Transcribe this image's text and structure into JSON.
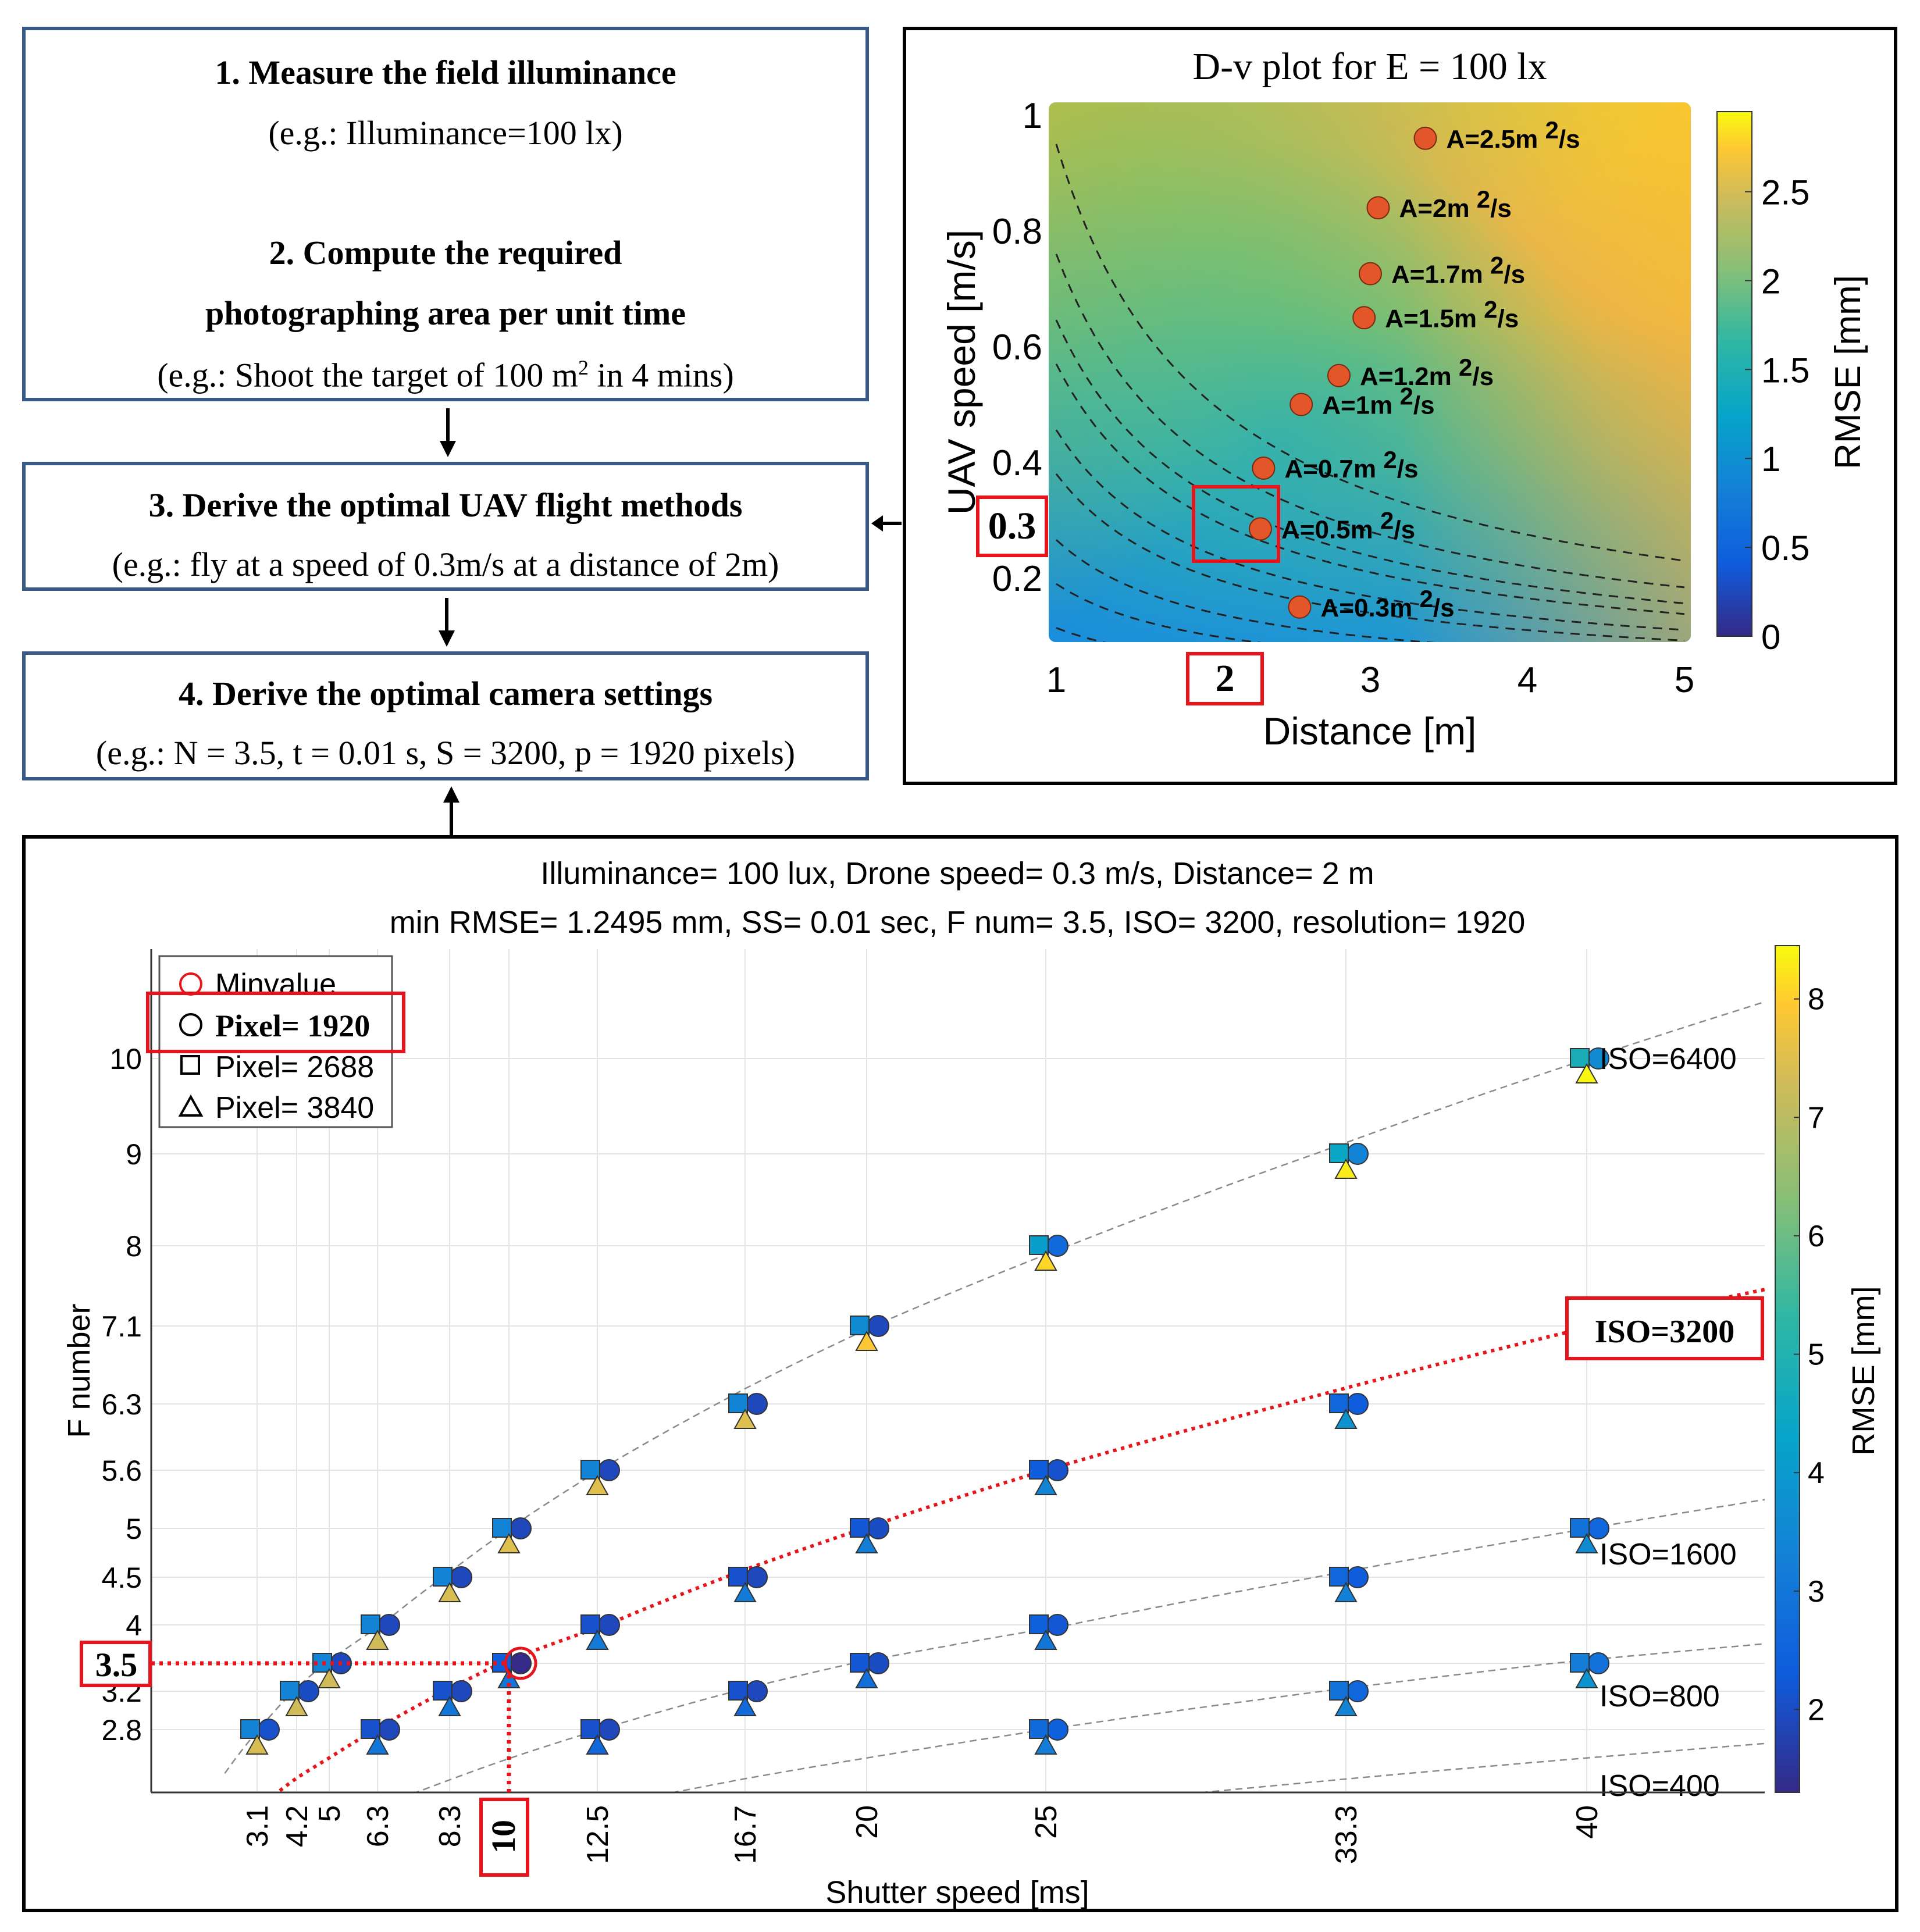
{
  "flow": {
    "step1_title": "1.  Measure the field illuminance",
    "step1_example": "(e.g.: Illuminance=100 lx)",
    "step2_title_line1": "2. Compute the required",
    "step2_title_line2": "photographing area per unit time",
    "step2_example_pre": "(e.g.: Shoot the target of 100 m",
    "step2_example_sup": "2",
    "step2_example_post": " in 4 mins)",
    "step3_title": "3. Derive the optimal UAV flight methods",
    "step3_example": "(e.g.: fly at a speed of 0.3m/s at a distance of 2m)",
    "step4_title": "4. Derive the optimal camera settings",
    "step4_example": "(e.g.: N = 3.5, t = 0.01 s, S = 3200, p = 1920 pixels)"
  },
  "chart_data": [
    {
      "type": "heatmap",
      "title": "D-v plot for E = 100 lx",
      "xlabel": "Distance [m]",
      "ylabel": "UAV speed [m/s]",
      "xlim": [
        1,
        5
      ],
      "ylim": [
        0.1,
        1
      ],
      "xticks": [
        1,
        2,
        3,
        4,
        5
      ],
      "yticks": [
        0.2,
        0.4,
        0.6,
        0.8,
        1
      ],
      "colorbar_label": "RMSE [mm]",
      "colorbar_range": [
        0,
        2.95
      ],
      "colorbar_ticks": [
        0,
        0.5,
        1,
        1.5,
        2,
        2.5
      ],
      "highlight": {
        "x": "2",
        "y": "0.3"
      },
      "points": [
        {
          "label": "A=2.5m",
          "x": 3.35,
          "y": 0.96
        },
        {
          "label": "A=2m",
          "x": 3.05,
          "y": 0.84
        },
        {
          "label": "A=1.7m",
          "x": 3.0,
          "y": 0.726
        },
        {
          "label": "A=1.5m",
          "x": 2.96,
          "y": 0.65
        },
        {
          "label": "A=1.2m",
          "x": 2.8,
          "y": 0.55
        },
        {
          "label": "A=1m",
          "x": 2.56,
          "y": 0.5
        },
        {
          "label": "A=0.7m",
          "x": 2.32,
          "y": 0.39
        },
        {
          "label": "A=0.5m",
          "x": 2.3,
          "y": 0.285
        },
        {
          "label": "A=0.3m",
          "x": 2.55,
          "y": 0.15
        }
      ],
      "label_suffix_sup": "2",
      "label_suffix": "/s",
      "contour_A": [
        0.3,
        0.5,
        0.7,
        1,
        1.2,
        1.5,
        1.7,
        2,
        2.5
      ]
    },
    {
      "type": "scatter",
      "title": "Illuminance= 100 lux, Drone speed= 0.3 m/s, Distance= 2 m",
      "subtitle": "min RMSE= 1.2495 mm, SS= 0.01 sec, F num= 3.5, ISO= 3200, resolution= 1920",
      "xlabel": "Shutter speed [ms]",
      "ylabel": "F number",
      "xticks": [
        "3.1",
        "4.2",
        "5",
        "6.3",
        "8.3",
        "10",
        "12.5",
        "16.7",
        "20",
        "25",
        "33.3",
        "40"
      ],
      "yticks": [
        "2.8",
        "3.2",
        "3.5",
        "4",
        "4.5",
        "5",
        "5.6",
        "6.3",
        "7.1",
        "8",
        "9",
        "10"
      ],
      "colorbar_label": "RMSE [mm]",
      "colorbar_range": [
        1.3,
        8.45
      ],
      "colorbar_ticks": [
        2,
        3,
        4,
        5,
        6,
        7,
        8
      ],
      "legend": [
        "Minvalue",
        "Pixel= 1920",
        "Pixel= 2688",
        "Pixel= 3840"
      ],
      "iso_curves": [
        {
          "name": "ISO=6400",
          "highlight": false
        },
        {
          "name": "ISO=3200",
          "highlight": true
        },
        {
          "name": "ISO=1600",
          "highlight": false
        },
        {
          "name": "ISO=800",
          "highlight": false
        },
        {
          "name": "ISO=400",
          "highlight": false
        }
      ],
      "min_point": {
        "x": "10",
        "y": "3.5"
      },
      "series": [
        {
          "name": "Pixel= 1920",
          "marker": "circle",
          "points": [
            {
              "x": "3.1",
              "y": "2.8",
              "v": 2.1
            },
            {
              "x": "4.2",
              "y": "3.2",
              "v": 2.0
            },
            {
              "x": "5",
              "y": "3.5",
              "v": 1.9
            },
            {
              "x": "6.3",
              "y": "4",
              "v": 1.9
            },
            {
              "x": "8.3",
              "y": "4.5",
              "v": 1.9
            },
            {
              "x": "10",
              "y": "5",
              "v": 1.9
            },
            {
              "x": "12.5",
              "y": "5.6",
              "v": 1.9
            },
            {
              "x": "16.7",
              "y": "6.3",
              "v": 1.9
            },
            {
              "x": "20",
              "y": "7.1",
              "v": 1.9
            },
            {
              "x": "25",
              "y": "8",
              "v": 2.7
            },
            {
              "x": "33.3",
              "y": "9",
              "v": 3.4
            },
            {
              "x": "40",
              "y": "10",
              "v": 3.6
            },
            {
              "x": "6.3",
              "y": "2.8",
              "v": 1.9
            },
            {
              "x": "8.3",
              "y": "3.2",
              "v": 1.9
            },
            {
              "x": "10",
              "y": "3.5",
              "v": 1.25
            },
            {
              "x": "12.5",
              "y": "4",
              "v": 1.9
            },
            {
              "x": "16.7",
              "y": "4.5",
              "v": 1.9
            },
            {
              "x": "20",
              "y": "5",
              "v": 2.0
            },
            {
              "x": "25",
              "y": "5.6",
              "v": 2.1
            },
            {
              "x": "33.3",
              "y": "6.3",
              "v": 2.3
            },
            {
              "x": "40",
              "y": "7.1",
              "v": 2.5
            },
            {
              "x": "12.5",
              "y": "2.8",
              "v": 1.9
            },
            {
              "x": "16.7",
              "y": "3.2",
              "v": 1.9
            },
            {
              "x": "20",
              "y": "3.5",
              "v": 2.0
            },
            {
              "x": "25",
              "y": "4",
              "v": 2.2
            },
            {
              "x": "33.3",
              "y": "4.5",
              "v": 2.3
            },
            {
              "x": "40",
              "y": "5",
              "v": 2.6
            },
            {
              "x": "25",
              "y": "2.8",
              "v": 2.4
            },
            {
              "x": "33.3",
              "y": "3.2",
              "v": 2.6
            },
            {
              "x": "40",
              "y": "3.5",
              "v": 2.9
            }
          ]
        },
        {
          "name": "Pixel= 2688",
          "marker": "square",
          "points": [
            {
              "x": "3.1",
              "y": "2.8",
              "v": 3.4
            },
            {
              "x": "4.2",
              "y": "3.2",
              "v": 3.4
            },
            {
              "x": "5",
              "y": "3.5",
              "v": 3.4
            },
            {
              "x": "6.3",
              "y": "4",
              "v": 3.4
            },
            {
              "x": "8.3",
              "y": "4.5",
              "v": 3.4
            },
            {
              "x": "10",
              "y": "5",
              "v": 3.4
            },
            {
              "x": "12.5",
              "y": "5.6",
              "v": 3.4
            },
            {
              "x": "16.7",
              "y": "6.3",
              "v": 3.4
            },
            {
              "x": "20",
              "y": "7.1",
              "v": 3.6
            },
            {
              "x": "25",
              "y": "8",
              "v": 4.1
            },
            {
              "x": "33.3",
              "y": "9",
              "v": 4.4
            },
            {
              "x": "40",
              "y": "10",
              "v": 4.8
            },
            {
              "x": "6.3",
              "y": "2.8",
              "v": 2.1
            },
            {
              "x": "8.3",
              "y": "3.2",
              "v": 2.1
            },
            {
              "x": "10",
              "y": "3.5",
              "v": 2.3
            },
            {
              "x": "12.5",
              "y": "4",
              "v": 2.1
            },
            {
              "x": "16.7",
              "y": "4.5",
              "v": 2.1
            },
            {
              "x": "20",
              "y": "5",
              "v": 2.2
            },
            {
              "x": "25",
              "y": "5.6",
              "v": 2.3
            },
            {
              "x": "33.3",
              "y": "6.3",
              "v": 2.6
            },
            {
              "x": "40",
              "y": "7.1",
              "v": 2.9
            },
            {
              "x": "12.5",
              "y": "2.8",
              "v": 2.1
            },
            {
              "x": "16.7",
              "y": "3.2",
              "v": 2.1
            },
            {
              "x": "20",
              "y": "3.5",
              "v": 2.2
            },
            {
              "x": "25",
              "y": "4",
              "v": 2.4
            },
            {
              "x": "33.3",
              "y": "4.5",
              "v": 2.6
            },
            {
              "x": "40",
              "y": "5",
              "v": 2.9
            },
            {
              "x": "25",
              "y": "2.8",
              "v": 2.7
            },
            {
              "x": "33.3",
              "y": "3.2",
              "v": 2.9
            },
            {
              "x": "40",
              "y": "3.5",
              "v": 3.2
            }
          ]
        },
        {
          "name": "Pixel= 3840",
          "marker": "triangle",
          "points": [
            {
              "x": "3.1",
              "y": "2.8",
              "v": 7.4
            },
            {
              "x": "4.2",
              "y": "3.2",
              "v": 7.3
            },
            {
              "x": "5",
              "y": "3.5",
              "v": 7.3
            },
            {
              "x": "6.3",
              "y": "4",
              "v": 7.3
            },
            {
              "x": "8.3",
              "y": "4.5",
              "v": 7.4
            },
            {
              "x": "10",
              "y": "5",
              "v": 7.5
            },
            {
              "x": "12.5",
              "y": "5.6",
              "v": 7.5
            },
            {
              "x": "16.7",
              "y": "6.3",
              "v": 7.5
            },
            {
              "x": "20",
              "y": "7.1",
              "v": 7.9
            },
            {
              "x": "25",
              "y": "8",
              "v": 8.1
            },
            {
              "x": "33.3",
              "y": "9",
              "v": 8.3
            },
            {
              "x": "40",
              "y": "10",
              "v": 8.4
            },
            {
              "x": "6.3",
              "y": "2.8",
              "v": 3.0
            },
            {
              "x": "8.3",
              "y": "3.2",
              "v": 3.0
            },
            {
              "x": "10",
              "y": "3.5",
              "v": 3.0
            },
            {
              "x": "12.5",
              "y": "4",
              "v": 3.1
            },
            {
              "x": "16.7",
              "y": "4.5",
              "v": 3.1
            },
            {
              "x": "20",
              "y": "5",
              "v": 3.2
            },
            {
              "x": "25",
              "y": "5.6",
              "v": 3.4
            },
            {
              "x": "33.3",
              "y": "6.3",
              "v": 3.8
            },
            {
              "x": "40",
              "y": "7.1",
              "v": 4.3
            },
            {
              "x": "12.5",
              "y": "2.8",
              "v": 2.6
            },
            {
              "x": "16.7",
              "y": "3.2",
              "v": 2.7
            },
            {
              "x": "20",
              "y": "3.5",
              "v": 2.8
            },
            {
              "x": "25",
              "y": "4",
              "v": 3.0
            },
            {
              "x": "33.3",
              "y": "4.5",
              "v": 3.3
            },
            {
              "x": "40",
              "y": "5",
              "v": 3.6
            },
            {
              "x": "25",
              "y": "2.8",
              "v": 3.2
            },
            {
              "x": "33.3",
              "y": "3.2",
              "v": 3.4
            },
            {
              "x": "40",
              "y": "3.5",
              "v": 3.8
            }
          ]
        }
      ]
    }
  ]
}
